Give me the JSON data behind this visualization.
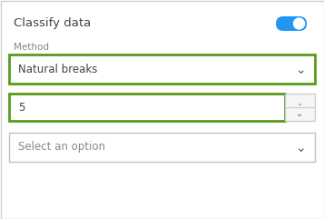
{
  "bg_color": "#ffffff",
  "outer_border_color": "#d0d0d0",
  "gray_border": "#c0c0c0",
  "green_border": "#5a9a1a",
  "title_text": "Classify data",
  "title_color": "#444444",
  "title_fontsize": 9.5,
  "toggle_on_color": "#2196F3",
  "toggle_circle_color": "#ffffff",
  "method_label": "Method",
  "method_label_color": "#888888",
  "method_label_fontsize": 7.5,
  "dropdown1_text": "Natural breaks",
  "dropdown1_fontsize": 8.5,
  "dropdown1_text_color": "#444444",
  "number_text": "5",
  "number_fontsize": 8.5,
  "number_text_color": "#444444",
  "dropdown2_text": "Select an option",
  "dropdown2_fontsize": 8.5,
  "dropdown2_text_color": "#888888",
  "chevron_color": "#666666",
  "spinner_border_color": "#cccccc",
  "spinner_bg": "#f5f5f5"
}
